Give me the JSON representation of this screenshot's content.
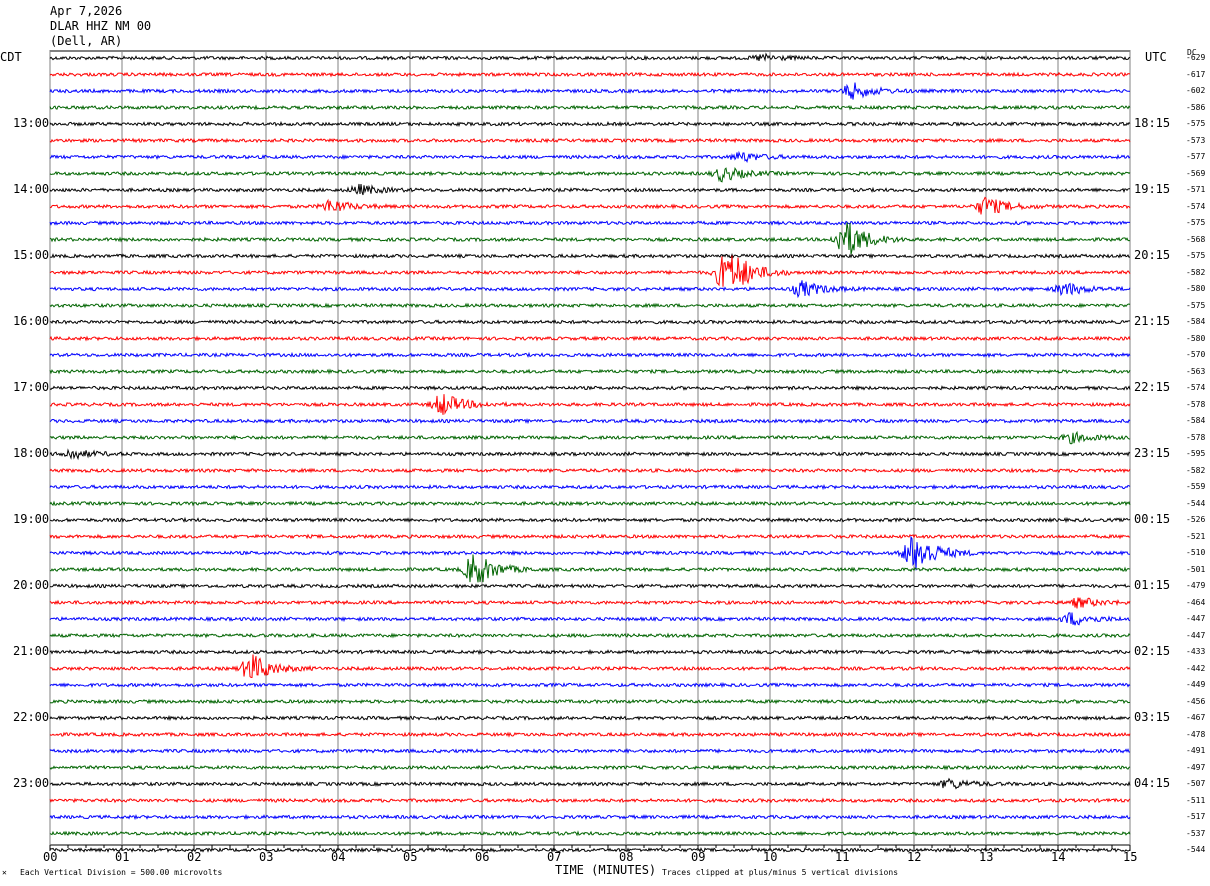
{
  "header": {
    "date": "Apr 7,2026",
    "station": "DLAR HHZ NM 00",
    "location": "(Dell, AR)"
  },
  "labels": {
    "left_zone": "CDT",
    "right_zone": "UTC",
    "dc": "DC",
    "xlabel": "TIME (MINUTES)",
    "scale_note": "Each Vertical Division =  500.00 microvolts",
    "clip_note": "Traces clipped at plus/minus 5 vertical divisions"
  },
  "chart_data": {
    "type": "line",
    "title": "DLAR HHZ NM 00 (Dell, AR)",
    "xlabel": "TIME (MINUTES)",
    "ylabel": "",
    "xlim": [
      0,
      15
    ],
    "x_ticks": [
      "00",
      "01",
      "02",
      "03",
      "04",
      "05",
      "06",
      "07",
      "08",
      "09",
      "10",
      "11",
      "12",
      "13",
      "14",
      "15"
    ],
    "left_time_labels": [
      "13:00",
      "14:00",
      "15:00",
      "16:00",
      "17:00",
      "18:00",
      "19:00",
      "20:00",
      "21:00",
      "22:00",
      "23:00"
    ],
    "right_time_labels": [
      "18:15",
      "19:15",
      "20:15",
      "21:15",
      "22:15",
      "23:15",
      "00:15",
      "01:15",
      "02:15",
      "03:15",
      "04:15"
    ],
    "trace_colors": [
      "#000000",
      "#ff0000",
      "#0000ff",
      "#006400"
    ],
    "dc_offsets": [
      -629,
      -617,
      -602,
      -586,
      -575,
      -573,
      -577,
      -569,
      -571,
      -574,
      -575,
      -568,
      -575,
      -582,
      -580,
      -575,
      -584,
      -580,
      -570,
      -563,
      -574,
      -578,
      -584,
      -578,
      -595,
      -582,
      -559,
      -544,
      -526,
      -521,
      -510,
      -501,
      -479,
      -464,
      -447,
      -447,
      -433,
      -442,
      -449,
      -456,
      -467,
      -478,
      -491,
      -497,
      -507,
      -511,
      -517,
      -537,
      -544
    ],
    "events": [
      {
        "trace": 0,
        "minute": 9.9,
        "amp": 0.2
      },
      {
        "trace": 2,
        "minute": 11.15,
        "amp": 0.5
      },
      {
        "trace": 6,
        "minute": 9.6,
        "amp": 0.3
      },
      {
        "trace": 7,
        "minute": 9.35,
        "amp": 0.45
      },
      {
        "trace": 8,
        "minute": 4.3,
        "amp": 0.3
      },
      {
        "trace": 9,
        "minute": 3.9,
        "amp": 0.4
      },
      {
        "trace": 9,
        "minute": 13.0,
        "amp": 0.6
      },
      {
        "trace": 11,
        "minute": 11.05,
        "amp": 1.3
      },
      {
        "trace": 13,
        "minute": 9.4,
        "amp": 2.0
      },
      {
        "trace": 14,
        "minute": 10.45,
        "amp": 0.5
      },
      {
        "trace": 14,
        "minute": 14.1,
        "amp": 0.4
      },
      {
        "trace": 21,
        "minute": 5.45,
        "amp": 0.7
      },
      {
        "trace": 23,
        "minute": 14.2,
        "amp": 0.3
      },
      {
        "trace": 24,
        "minute": 0.3,
        "amp": 0.3
      },
      {
        "trace": 30,
        "minute": 12.0,
        "amp": 1.5
      },
      {
        "trace": 31,
        "minute": 5.9,
        "amp": 1.1
      },
      {
        "trace": 33,
        "minute": 14.3,
        "amp": 0.3
      },
      {
        "trace": 34,
        "minute": 14.2,
        "amp": 0.4
      },
      {
        "trace": 37,
        "minute": 2.8,
        "amp": 0.9
      },
      {
        "trace": 44,
        "minute": 12.5,
        "amp": 0.3
      }
    ]
  }
}
